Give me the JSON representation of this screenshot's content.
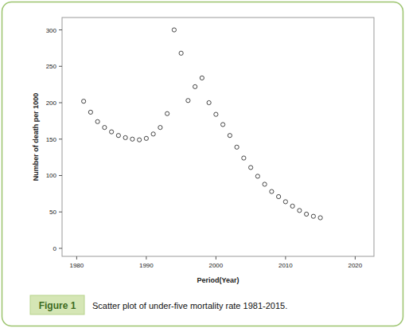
{
  "chart_data": {
    "type": "scatter",
    "x_label": "Period(Year)",
    "y_label": "Number of death per 1000",
    "x": [
      1981,
      1982,
      1983,
      1984,
      1985,
      1986,
      1987,
      1988,
      1989,
      1990,
      1991,
      1992,
      1993,
      1994,
      1995,
      1996,
      1997,
      1998,
      1999,
      2000,
      2001,
      2002,
      2003,
      2004,
      2005,
      2006,
      2007,
      2008,
      2009,
      2010,
      2011,
      2012,
      2013,
      2014,
      2015
    ],
    "values": [
      202,
      187,
      174,
      166,
      160,
      155,
      152,
      150,
      149,
      151,
      157,
      166,
      185,
      300,
      268,
      203,
      222,
      234,
      200,
      184,
      170,
      155,
      139,
      124,
      111,
      99,
      88,
      78,
      71,
      64,
      58,
      52,
      47,
      44,
      42
    ],
    "color": "#333333",
    "marker": "open_circle",
    "xlim": [
      1977.9,
      2022.7
    ],
    "xticks": [
      1980,
      1990,
      2000,
      2010,
      2020
    ],
    "ylim": [
      -11,
      317
    ],
    "yticks": [
      0,
      50,
      100,
      150,
      200,
      250,
      300
    ],
    "grid": false
  },
  "caption": {
    "label": "Figure 1",
    "text": "Scatter plot of under-five mortality rate 1981-2015."
  }
}
